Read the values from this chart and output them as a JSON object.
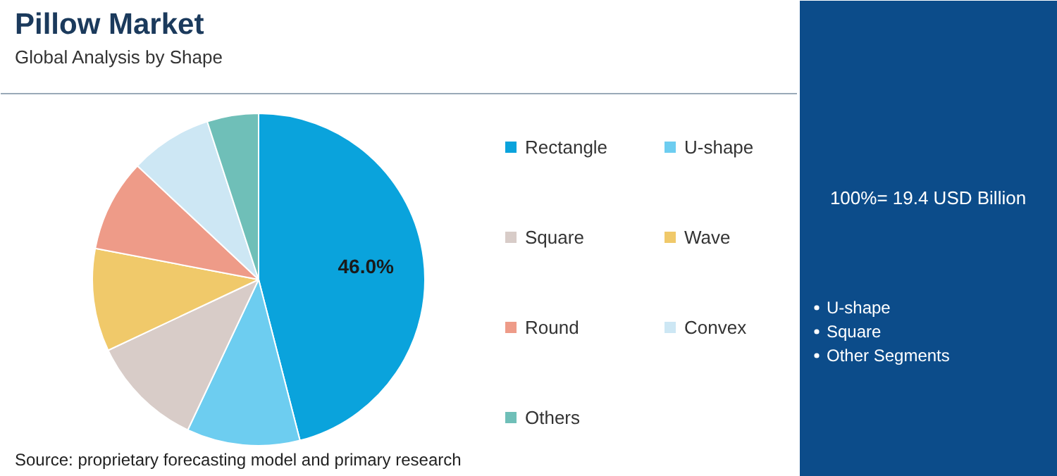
{
  "chart_data": {
    "type": "pie",
    "title": "Pillow Market",
    "subtitle": "Global Analysis by Shape",
    "categories": [
      "Rectangle",
      "U-shape",
      "Square",
      "Wave",
      "Round",
      "Convex",
      "Others"
    ],
    "values": [
      46.0,
      11,
      11,
      10,
      9,
      8,
      5
    ],
    "colors": [
      "#0aa3dc",
      "#6dcdf0",
      "#d8ccc8",
      "#f0c96a",
      "#ee9b88",
      "#cde7f4",
      "#6fbfb8"
    ],
    "value_labels": [
      "46.0%",
      null,
      null,
      null,
      null,
      null,
      null
    ],
    "legend": "right",
    "annotations": [
      "100%= 19.4 USD Billion",
      "U-shape",
      "Square",
      "Other Segments",
      "Source: proprietary forecasting model and primary research"
    ]
  }
}
